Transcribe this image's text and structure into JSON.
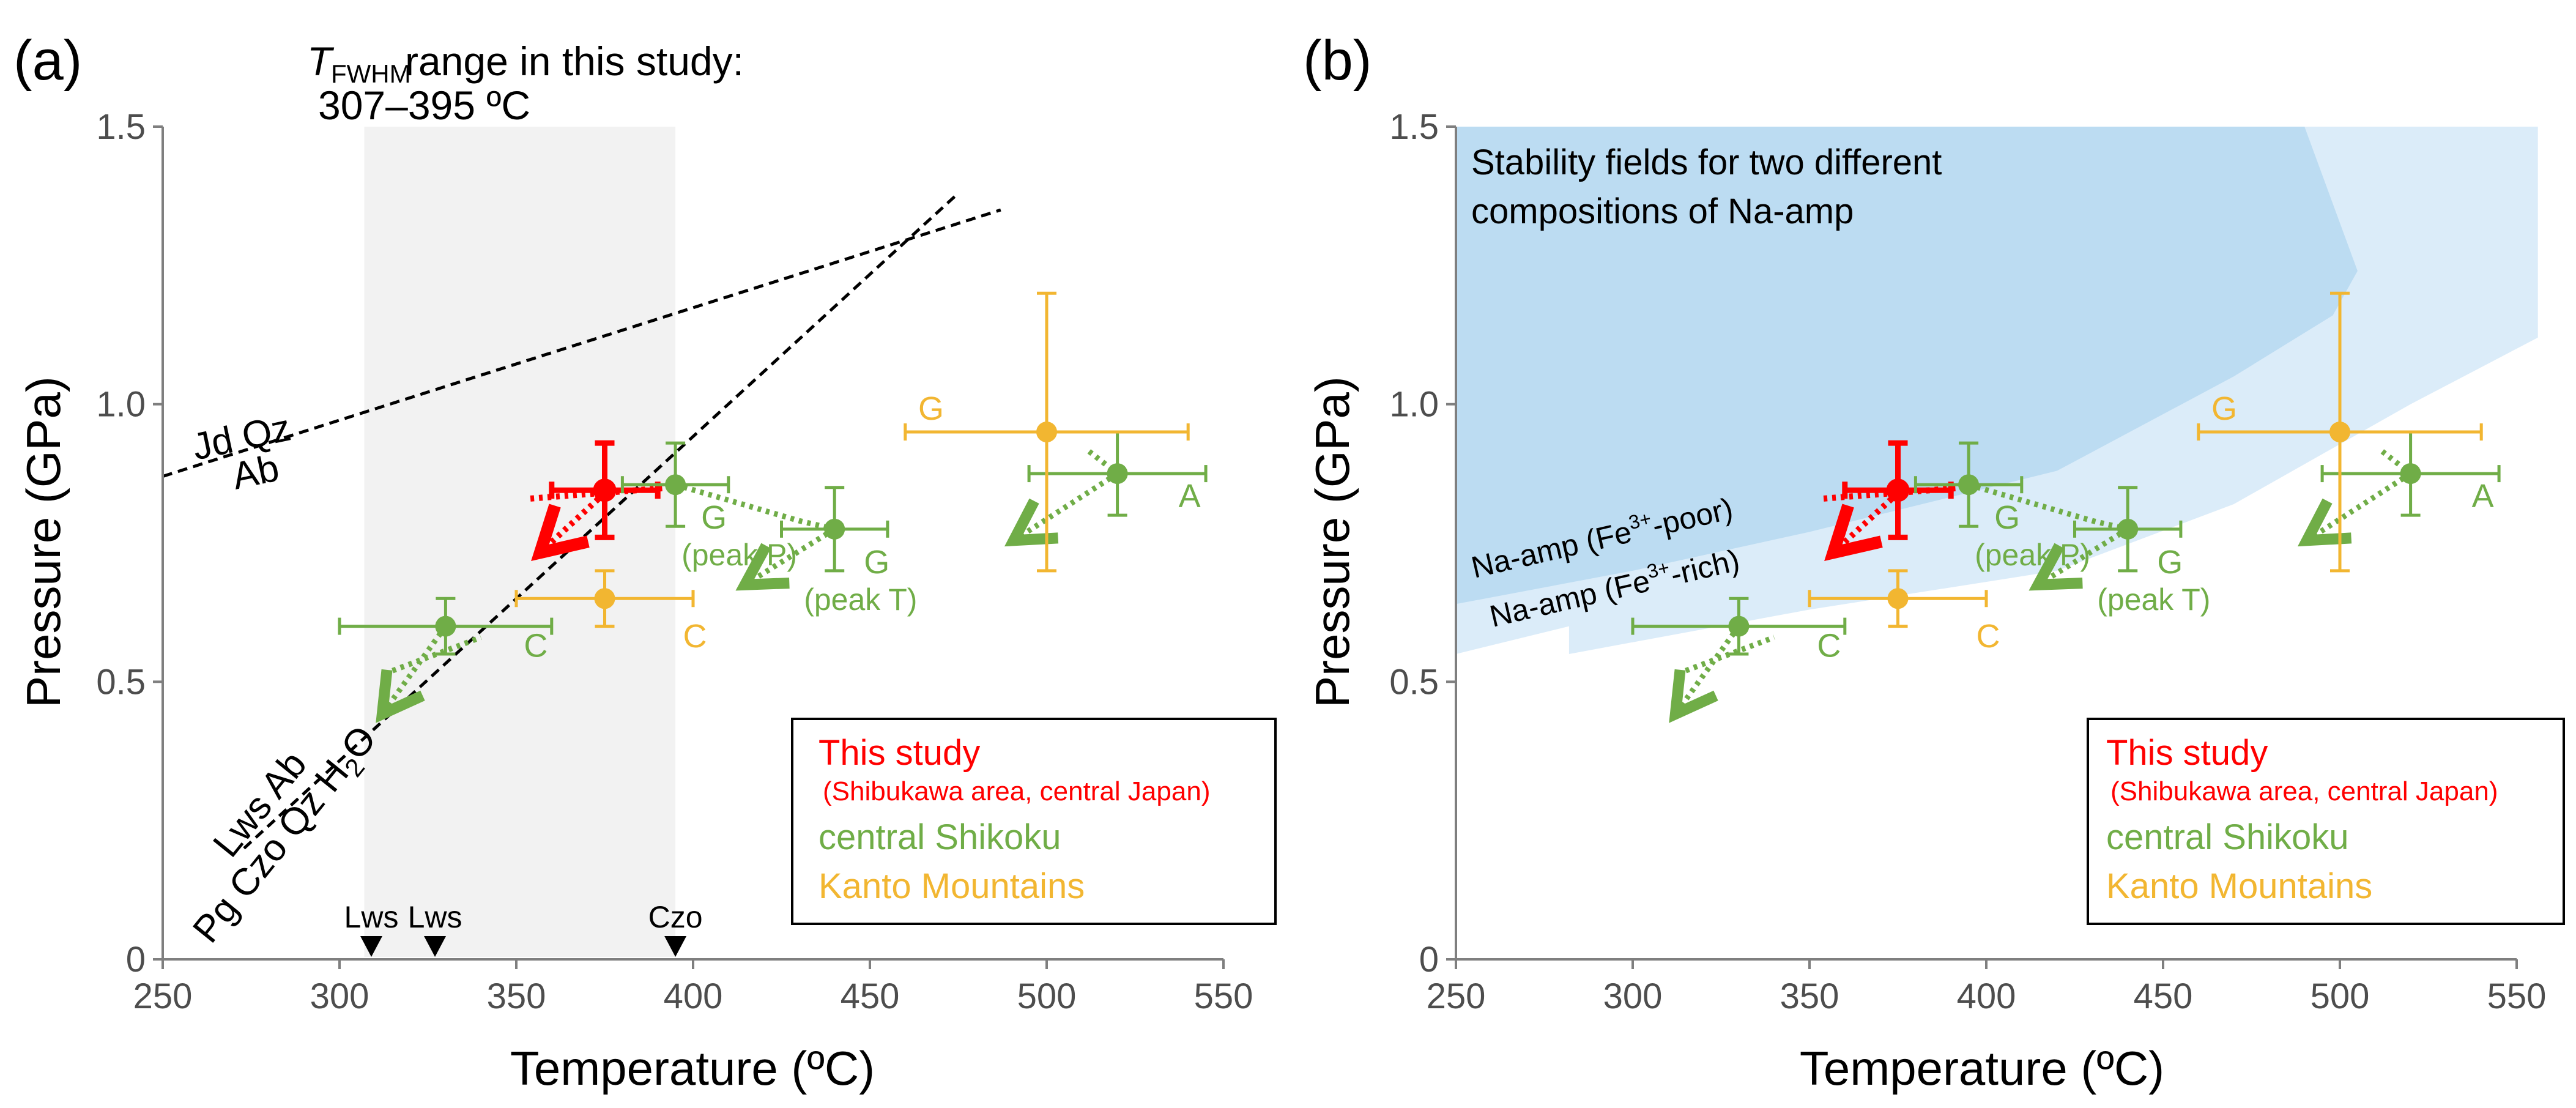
{
  "colors": {
    "this_study": "#ff0000",
    "central_shikoku": "#70ad47",
    "kanto": "#f2b631",
    "shade": "#f2f2f2",
    "field_dark": "#bcdcf2",
    "field_light": "#dbecf9"
  },
  "chart_data": [
    {
      "panel": "(a)",
      "type": "scatter",
      "xlabel": "Temperature (ºC)",
      "ylabel": "Pressure (GPa)",
      "xlim": [
        250,
        550
      ],
      "ylim": [
        0,
        1.5
      ],
      "x_ticks": [
        250,
        300,
        350,
        400,
        450,
        500,
        550
      ],
      "y_ticks": [
        0,
        0.5,
        1.0,
        1.5
      ],
      "y_tick_labels": [
        "0",
        "0.5",
        "1.0",
        "1.5"
      ],
      "grid": false,
      "legend_position": "bottom-right",
      "legend": [
        {
          "label": "This study",
          "sub": "(Shibukawa area, central Japan)",
          "color": "#ff0000"
        },
        {
          "label": "central Shikoku",
          "color": "#70ad47"
        },
        {
          "label": "Kanto Mountains",
          "color": "#f2b631"
        }
      ],
      "shaded_range": {
        "x": [
          307,
          395
        ],
        "label_T": "T",
        "label_sub": "FWHM",
        "label_rest": " range in this study:",
        "label_line2": "307–395 ºC"
      },
      "reaction_lines": [
        {
          "name": "jd-qz-ab",
          "x": [
            250,
            487
          ],
          "y": [
            0.87,
            1.35
          ],
          "label_top": "Jd Qz",
          "label_bottom": "Ab"
        },
        {
          "name": "lws-ab-pg-czo",
          "x": [
            273,
            475
          ],
          "y": [
            0.2,
            1.38
          ],
          "label_top": "Lws Ab",
          "label_bottom": "Pg Czo Qz H",
          "label_bottom_sub": "2",
          "label_bottom_end": "O"
        }
      ],
      "markers": [
        {
          "label": "Lws",
          "x": 309
        },
        {
          "label": "Lws",
          "x": 327
        },
        {
          "label": "Czo",
          "x": 395
        }
      ],
      "series": [
        {
          "name": "This study",
          "color": "#ff0000",
          "points": [
            {
              "x": 375,
              "y": 0.845,
              "x_err": [
                360,
                390
              ],
              "y_err": [
                0.76,
                0.93
              ]
            }
          ],
          "paths": [
            {
              "x": [
                358,
                394
              ],
              "y": [
                0.83,
                0.85
              ],
              "arrow_to": [
                360,
                0.77
              ],
              "arrow_from": [
                375,
                0.84
              ]
            }
          ]
        },
        {
          "name": "central Shikoku",
          "color": "#70ad47",
          "points": [
            {
              "x": 330,
              "y": 0.6,
              "x_err": [
                300,
                360
              ],
              "y_err": [
                0.55,
                0.65
              ],
              "label": "C"
            },
            {
              "x": 395,
              "y": 0.855,
              "x_err": [
                380,
                410
              ],
              "y_err": [
                0.78,
                0.93
              ],
              "label": "G",
              "sub": "(peak P)"
            },
            {
              "x": 440,
              "y": 0.775,
              "x_err": [
                425,
                455
              ],
              "y_err": [
                0.7,
                0.85
              ],
              "label": "G",
              "sub": "(peak T)"
            },
            {
              "x": 520,
              "y": 0.875,
              "x_err": [
                495,
                545
              ],
              "y_err": [
                0.8,
                0.95
              ],
              "label": "A"
            }
          ]
        },
        {
          "name": "Kanto Mountains",
          "color": "#f2b631",
          "points": [
            {
              "x": 375,
              "y": 0.65,
              "x_err": [
                350,
                400
              ],
              "y_err": [
                0.6,
                0.7
              ],
              "label": "C"
            },
            {
              "x": 500,
              "y": 0.95,
              "x_err": [
                460,
                540
              ],
              "y_err": [
                0.7,
                1.2
              ],
              "label": "G"
            }
          ]
        }
      ]
    },
    {
      "panel": "(b)",
      "type": "scatter",
      "xlabel": "Temperature (ºC)",
      "ylabel": "Pressure (GPa)",
      "xlim": [
        250,
        550
      ],
      "ylim": [
        0,
        1.5
      ],
      "x_ticks": [
        250,
        300,
        350,
        400,
        450,
        500,
        550
      ],
      "y_ticks": [
        0,
        0.5,
        1.0,
        1.5
      ],
      "y_tick_labels": [
        "0",
        "0.5",
        "1.0",
        "1.5"
      ],
      "grid": false,
      "legend_position": "bottom-right",
      "legend": [
        {
          "label": "This study",
          "sub": "(Shibukawa area, central Japan)",
          "color": "#ff0000"
        },
        {
          "label": "central Shikoku",
          "color": "#70ad47"
        },
        {
          "label": "Kanto Mountains",
          "color": "#f2b631"
        }
      ],
      "stability_fields": {
        "title_line1": "Stability fields for two different",
        "title_line2": "compositions of Na-amp",
        "fe_poor": {
          "label": "Na-amp (Fe",
          "sup": "3+",
          "label_end": "-poor)"
        },
        "fe_rich": {
          "label": "Na-amp (Fe",
          "sup": "3+",
          "label_end": "-rich)"
        }
      },
      "series": "same as panel (a)"
    }
  ]
}
